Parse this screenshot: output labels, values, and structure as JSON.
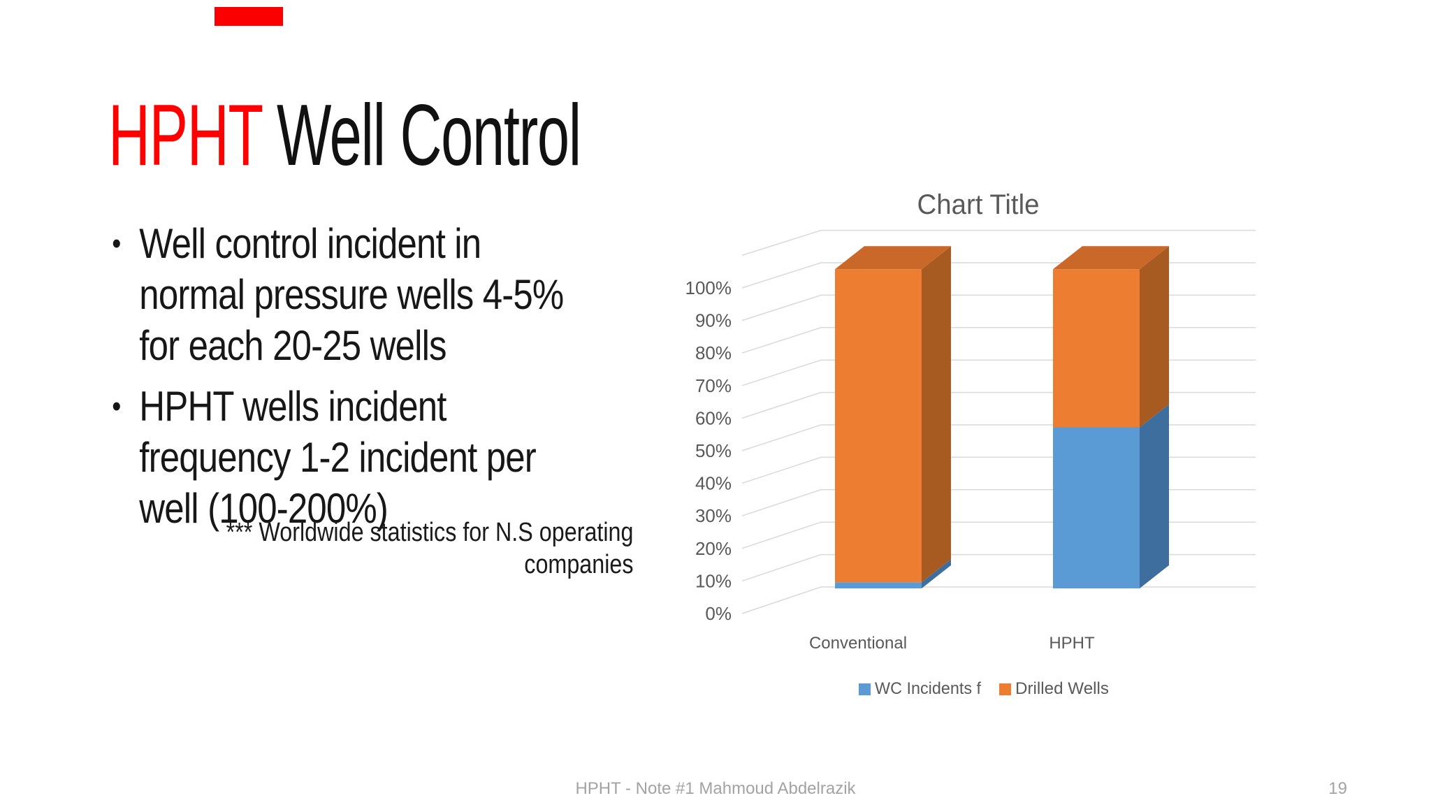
{
  "slide": {
    "title": {
      "highlight": "HPHT",
      "rest": " Well Control",
      "highlight_color": "#FF0000",
      "text_color": "#111111"
    },
    "bullet_char": "•",
    "bullets": [
      {
        "text": "Well control incident in\nnormal pressure wells 4-5%\nfor each 20-25 wells"
      },
      {
        "text": "HPHT wells incident\nfrequency 1-2 incident per\nwell (100-200%)"
      }
    ],
    "note": "*** Worldwide statistics for N.S operating\ncompanies",
    "decor": {
      "red_marker_color": "#FB0000"
    },
    "footer": {
      "text": "HPHT - Note #1 Mahmoud Abdelrazik",
      "page_number": "19"
    }
  },
  "chart_data": {
    "type": "bar",
    "subtype": "3d-stacked-column",
    "title": "Chart Title",
    "categories": [
      "Conventional",
      "HPHT"
    ],
    "series": [
      {
        "name": "WC Incidents f",
        "values": [
          2,
          53
        ],
        "color": "#5B9BD5",
        "side_color": "#3E6E9E",
        "top_color": "#4A86BC"
      },
      {
        "name": "Drilled Wells",
        "values": [
          103,
          52
        ],
        "color": "#ED7D31",
        "side_color": "#A85B21",
        "top_color": "#C96829"
      }
    ],
    "xlabel": "",
    "ylabel": "",
    "axis": {
      "min": 0,
      "max": 100,
      "step": 10,
      "format": "percent"
    },
    "ticks": [
      "0%",
      "10%",
      "20%",
      "30%",
      "40%",
      "50%",
      "60%",
      "70%",
      "80%",
      "90%",
      "100%"
    ],
    "gridlines_to": 110,
    "grid": true,
    "grid_color": "#D9D9D9",
    "text_color": "#595959",
    "legend_position": "bottom"
  }
}
